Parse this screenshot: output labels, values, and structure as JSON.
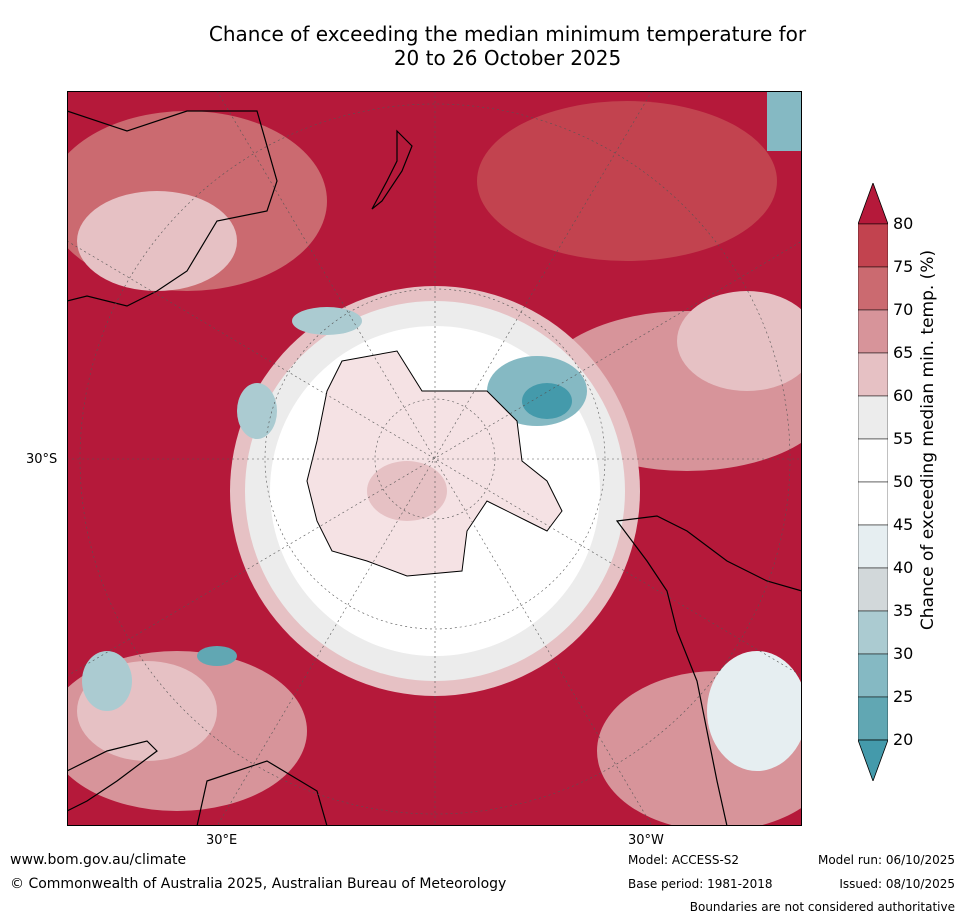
{
  "title_line1": "Chance of exceeding the median minimum temperature for",
  "title_line2": "20 to 26 October 2025",
  "map": {
    "projection": "south-polar-stereographic",
    "lat_label": "30°S",
    "lon_label_left": "30°E",
    "lon_label_right": "30°W"
  },
  "colorbar": {
    "label": "Chance of exceeding median min. temp. (%)",
    "ticks": [
      "80",
      "75",
      "70",
      "65",
      "60",
      "55",
      "50",
      "45",
      "40",
      "35",
      "30",
      "25",
      "20"
    ],
    "colors": [
      "#b5193a",
      "#c2434f",
      "#cb6a70",
      "#d7949a",
      "#e6c1c4",
      "#ececec",
      "#ffffff",
      "#ffffff",
      "#e6eef1",
      "#d2d8da",
      "#abcbd1",
      "#85b9c3",
      "#61a7b3",
      "#449aab"
    ]
  },
  "footer": {
    "url": "www.bom.gov.au/climate",
    "copyright": "© Commonwealth of Australia 2025, Australian Bureau of Meteorology",
    "model": "Model: ACCESS-S2",
    "base_period": "Base period: 1981-2018",
    "model_run": "Model run: 06/10/2025",
    "issued": "Issued: 08/10/2025",
    "disclaimer": "Boundaries are not considered authoritative"
  }
}
